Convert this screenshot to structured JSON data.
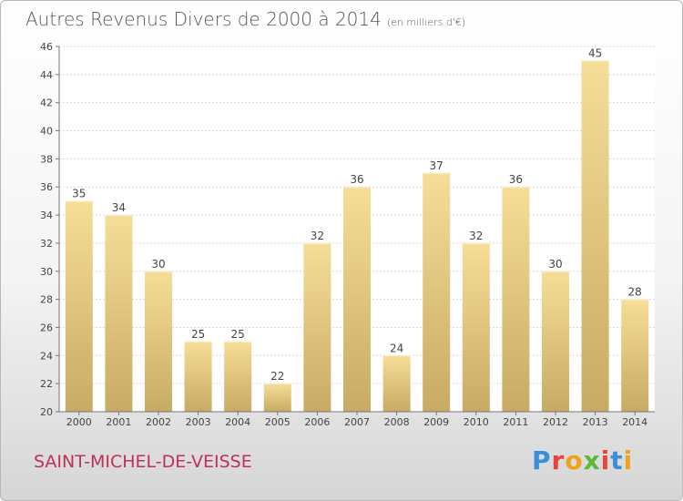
{
  "header": {
    "title": "Autres Revenus Divers de 2000 à 2014",
    "unit": "(en milliers d'€)"
  },
  "footer": {
    "commune": "SAINT-MICHEL-DE-VEISSE",
    "logo_text": "Proxiti",
    "logo_colors": [
      "#3a8fd8",
      "#e8453c",
      "#f2a21a",
      "#5cb83c",
      "#e8453c",
      "#3a8fd8",
      "#f2a21a"
    ]
  },
  "colors": {
    "bar_light": "#f6de98",
    "bar_dark": "#c8aa64",
    "grid": "#d8d8d8",
    "axis": "#777777",
    "label": "#444444"
  },
  "chart_data": {
    "type": "bar",
    "title": "Autres Revenus Divers de 2000 à 2014",
    "xlabel": "",
    "ylabel": "",
    "categories": [
      "2000",
      "2001",
      "2002",
      "2003",
      "2004",
      "2005",
      "2006",
      "2007",
      "2008",
      "2009",
      "2010",
      "2011",
      "2012",
      "2013",
      "2014"
    ],
    "values": [
      35,
      34,
      30,
      25,
      25,
      22,
      32,
      36,
      24,
      37,
      32,
      36,
      30,
      45,
      28
    ],
    "ylim": [
      20,
      46
    ],
    "yticks": [
      20,
      22,
      24,
      26,
      28,
      30,
      32,
      34,
      36,
      38,
      40,
      42,
      44,
      46
    ],
    "grid": true,
    "data_labels": true
  }
}
